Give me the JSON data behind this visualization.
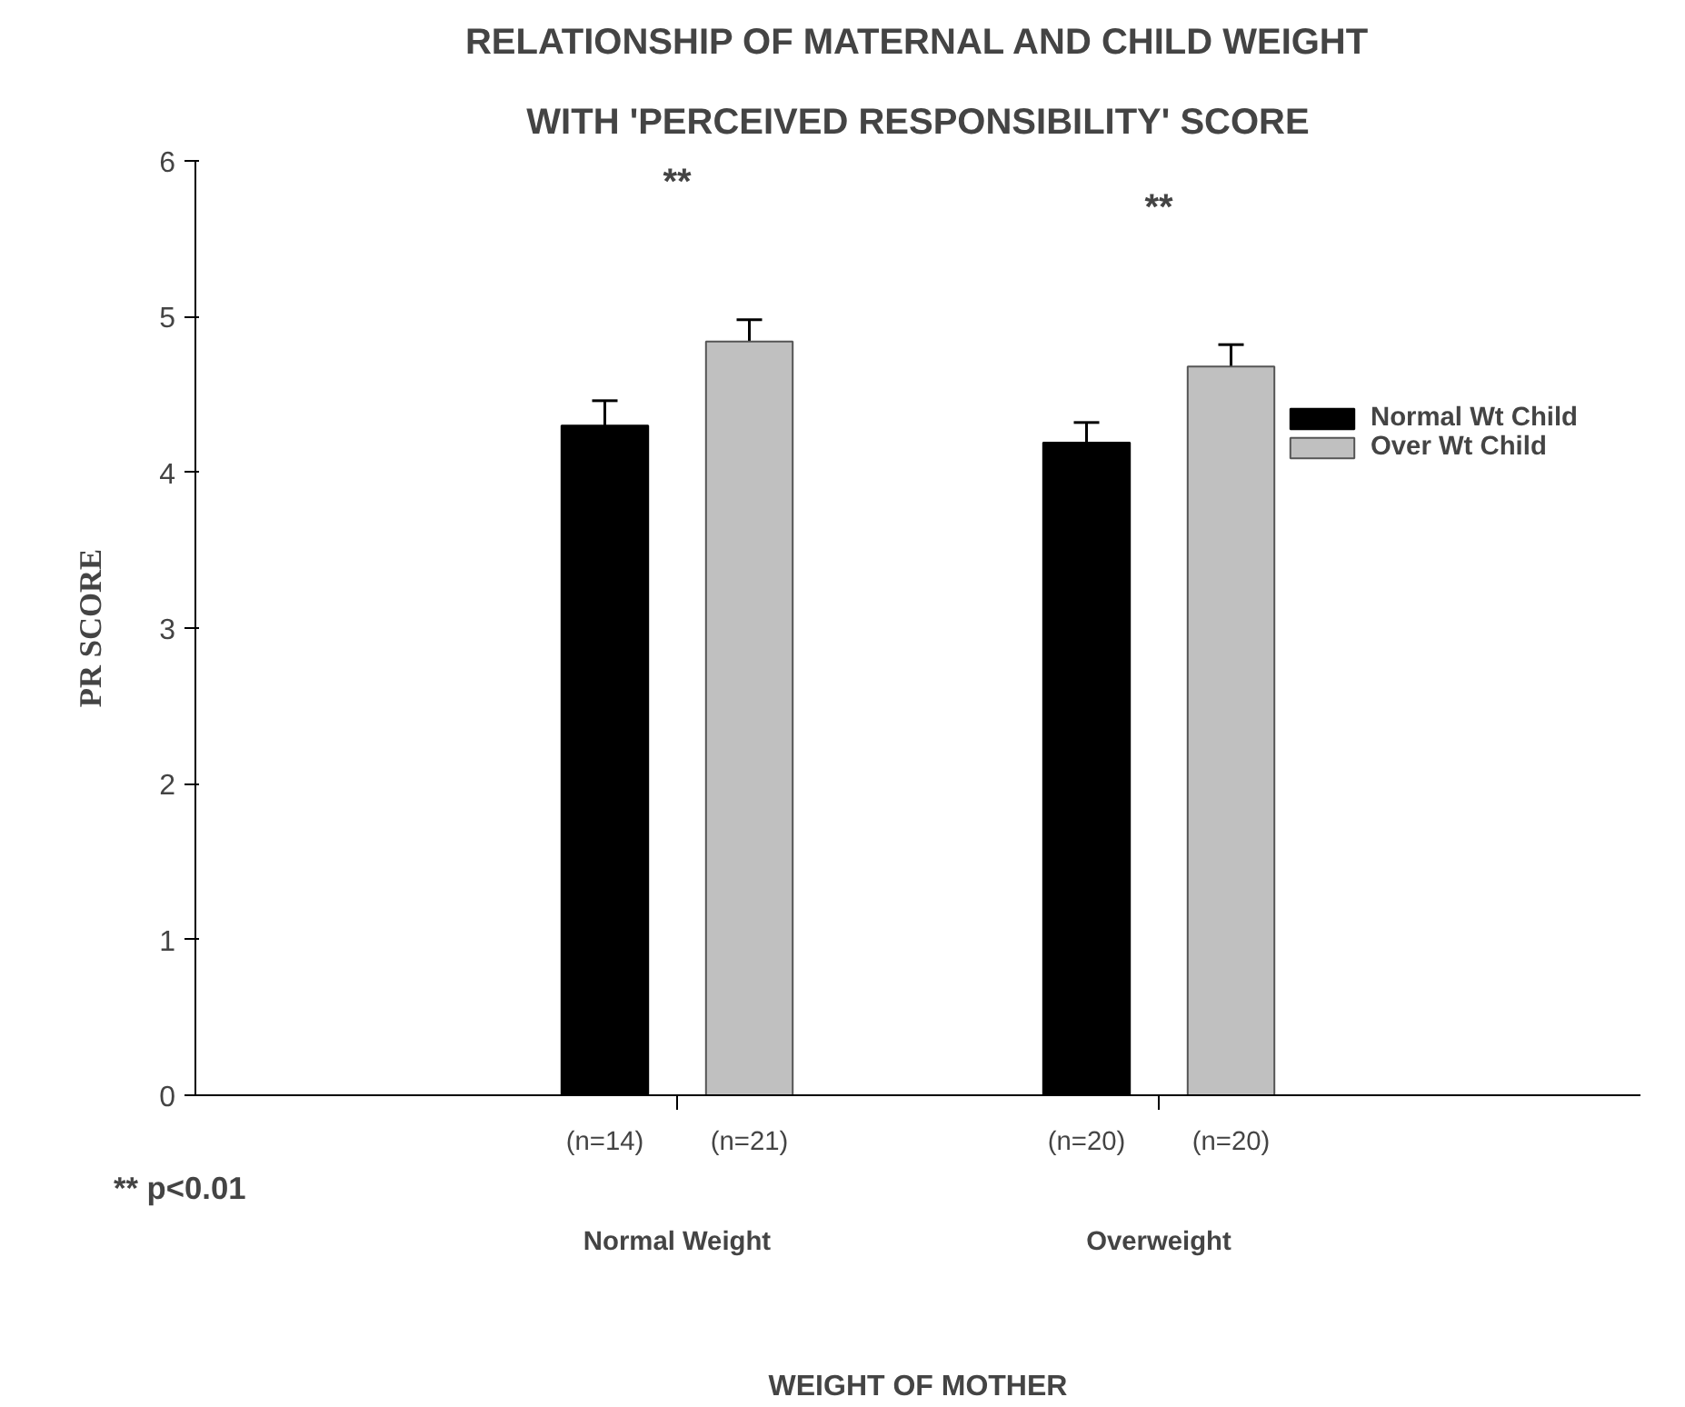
{
  "chart_data": {
    "type": "bar",
    "title": "RELATIONSHIP OF MATERNAL AND CHILD WEIGHT",
    "subtitle": "WITH 'PERCEIVED RESPONSIBILITY' SCORE",
    "xlabel": "WEIGHT OF MOTHER",
    "ylabel": "PR SCORE",
    "categories": [
      "Normal Weight",
      "Overweight"
    ],
    "series": [
      {
        "name": "Normal Wt Child",
        "color": "#000000",
        "values": [
          4.3,
          4.19
        ],
        "errors": [
          0.16,
          0.13
        ]
      },
      {
        "name": "Over Wt Child",
        "color": "#c0c0c0",
        "values": [
          4.84,
          4.68
        ],
        "errors": [
          0.14,
          0.14
        ]
      }
    ],
    "ylim": [
      0,
      6
    ],
    "yticks": [
      0,
      1,
      2,
      3,
      4,
      5,
      6
    ],
    "legend": "right",
    "annotations": [
      "(n=14)",
      "(n=21)",
      "(n=20)",
      "(n=20)",
      "**",
      "**",
      "** p<0.01"
    ]
  }
}
